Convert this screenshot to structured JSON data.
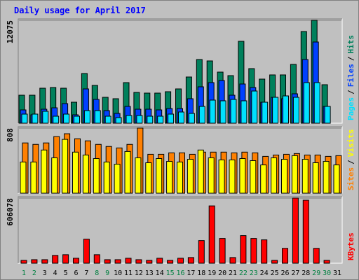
{
  "legend_separator": "/",
  "chart_data": [
    {
      "type": "bar",
      "title": "Daily usage for April 2017",
      "ylim": [
        0,
        12075
      ],
      "yticks": [
        12075
      ],
      "grid": true,
      "series": [
        {
          "name": "Hits",
          "color": "#00805c",
          "values": [
            3286,
            3286,
            4107,
            4190,
            4107,
            2464,
            5832,
            4436,
            3039,
            2875,
            4764,
            3614,
            3532,
            3532,
            3696,
            4025,
            5421,
            7475,
            7310,
            5996,
            5585,
            9610,
            6407,
            5175,
            5668,
            5668,
            6900,
            10760,
            12075,
            4518,
            0
          ]
        },
        {
          "name": "Files",
          "color": "#0040ff",
          "values": [
            1560,
            986,
            1643,
            1807,
            2300,
            986,
            4025,
            2793,
            1478,
            1150,
            1971,
            1643,
            1643,
            1560,
            1725,
            1725,
            2875,
            4271,
            4764,
            5011,
            3286,
            4600,
            4189,
            2464,
            3039,
            2875,
            3450,
            7475,
            9528,
            1971,
            0
          ]
        },
        {
          "name": "Pages",
          "color": "#00e0ff",
          "values": [
            1068,
            1068,
            1396,
            821,
            1068,
            821,
            1478,
            1478,
            821,
            657,
            904,
            904,
            821,
            821,
            1068,
            1314,
            1150,
            1971,
            2711,
            2628,
            2793,
            2628,
            3778,
            2464,
            3039,
            3203,
            3039,
            4764,
            4764,
            1971,
            0
          ]
        }
      ]
    },
    {
      "type": "bar",
      "ylim": [
        0,
        808
      ],
      "yticks": [
        808
      ],
      "grid": true,
      "series": [
        {
          "name": "Sites",
          "color": "#ff8000",
          "values": [
            624,
            606,
            624,
            703,
            738,
            676,
            650,
            606,
            580,
            562,
            606,
            808,
            483,
            483,
            501,
            501,
            483,
            510,
            510,
            510,
            501,
            510,
            501,
            457,
            474,
            483,
            492,
            474,
            474,
            457,
            466
          ]
        },
        {
          "name": "Visits",
          "color": "#ffff00",
          "values": [
            387,
            387,
            536,
            439,
            668,
            510,
            474,
            430,
            387,
            360,
            518,
            439,
            378,
            430,
            395,
            387,
            421,
            536,
            439,
            413,
            413,
            430,
            404,
            351,
            439,
            421,
            466,
            421,
            378,
            395,
            351
          ]
        }
      ]
    },
    {
      "type": "bar",
      "ylim": [
        0,
        606078
      ],
      "yticks": [
        606078
      ],
      "grid": true,
      "categories": [
        "1",
        "2",
        "3",
        "4",
        "5",
        "6",
        "7",
        "8",
        "9",
        "10",
        "11",
        "12",
        "13",
        "14",
        "15",
        "16",
        "17",
        "18",
        "19",
        "20",
        "21",
        "22",
        "23",
        "24",
        "25",
        "26",
        "27",
        "28",
        "29",
        "30",
        "31"
      ],
      "category_colors": [
        "#008040",
        "#008040",
        "#000000",
        "#000000",
        "#000000",
        "#000000",
        "#000000",
        "#008040",
        "#008040",
        "#000000",
        "#000000",
        "#000000",
        "#000000",
        "#000000",
        "#008040",
        "#008040",
        "#000000",
        "#000000",
        "#000000",
        "#000000",
        "#000000",
        "#008040",
        "#008040",
        "#000000",
        "#000000",
        "#000000",
        "#000000",
        "#000000",
        "#008040",
        "#008040",
        "#000000"
      ],
      "series": [
        {
          "name": "KBytes",
          "color": "#ff0000",
          "values": [
            26354,
            32940,
            32940,
            72470,
            79060,
            46120,
            224000,
            79060,
            32940,
            32940,
            46120,
            32940,
            26354,
            46120,
            26354,
            46120,
            52700,
            210800,
            533600,
            230600,
            52700,
            256900,
            230600,
            217400,
            26354,
            138300,
            606078,
            586300,
            138300,
            26354,
            0
          ]
        }
      ]
    }
  ]
}
